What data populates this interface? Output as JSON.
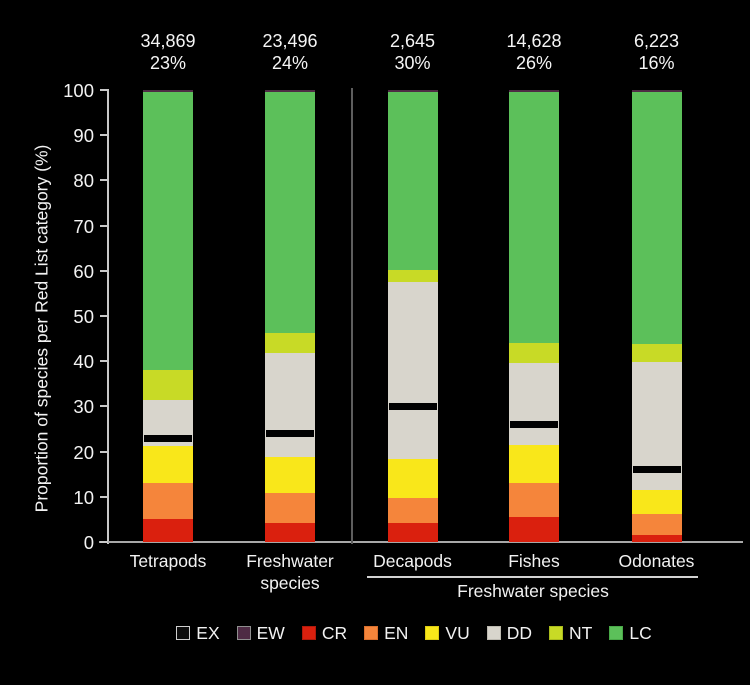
{
  "y_axis_title": "Proportion of species per Red List category (%)",
  "legend": {
    "items": [
      {
        "code": "EX",
        "label": "EX",
        "color": "#0d0d0d",
        "border": "#cfcfcf"
      },
      {
        "code": "EW",
        "label": "EW",
        "color": "#4e2b44",
        "border": "#8f8f8f"
      },
      {
        "code": "CR",
        "label": "CR",
        "color": "#da200e",
        "border": "#b01a0b"
      },
      {
        "code": "EN",
        "label": "EN",
        "color": "#f5853b",
        "border": "#d96f2d"
      },
      {
        "code": "VU",
        "label": "VU",
        "color": "#f9e71a",
        "border": "#ddcc12"
      },
      {
        "code": "DD",
        "label": "DD",
        "color": "#d8d5cc",
        "border": "#bcb9b0"
      },
      {
        "code": "NT",
        "label": "NT",
        "color": "#c8da26",
        "border": "#aabc1c"
      },
      {
        "code": "LC",
        "label": "LC",
        "color": "#5cc05a",
        "border": "#49a948"
      }
    ]
  },
  "chart_data": {
    "type": "bar",
    "stacked": true,
    "title": "",
    "xlabel": "",
    "ylabel": "Proportion of species per Red List category (%)",
    "ylim": [
      0,
      100
    ],
    "yticks": [
      0,
      10,
      20,
      30,
      40,
      50,
      60,
      70,
      80,
      90,
      100
    ],
    "categories": [
      "Tetrapods",
      "Freshwater species",
      "Decapods",
      "Fishes",
      "Odonates"
    ],
    "group_label": "Freshwater species",
    "grouped_categories": [
      "Decapods",
      "Fishes",
      "Odonates"
    ],
    "annotations": [
      {
        "species_count": "34,869",
        "percent_threatened": "23%"
      },
      {
        "species_count": "23,496",
        "percent_threatened": "24%"
      },
      {
        "species_count": "2,645",
        "percent_threatened": "30%"
      },
      {
        "species_count": "14,628",
        "percent_threatened": "26%"
      },
      {
        "species_count": "6,223",
        "percent_threatened": "16%"
      }
    ],
    "threatened_marker_values": [
      23,
      24,
      30,
      26,
      16
    ],
    "series": [
      {
        "name": "CR",
        "values": [
          5.1,
          4.2,
          4.2,
          5.5,
          1.5
        ]
      },
      {
        "name": "EN",
        "values": [
          8.0,
          6.6,
          5.5,
          7.5,
          4.6
        ]
      },
      {
        "name": "VU",
        "values": [
          8.2,
          8.0,
          8.6,
          8.4,
          5.3
        ]
      },
      {
        "name": "DD",
        "values": [
          10.2,
          23.0,
          39.2,
          18.1,
          28.5
        ]
      },
      {
        "name": "NT",
        "values": [
          6.6,
          4.4,
          2.7,
          4.6,
          4.0
        ]
      },
      {
        "name": "LC",
        "values": [
          61.5,
          53.4,
          39.4,
          55.5,
          55.7
        ]
      },
      {
        "name": "EW",
        "values": [
          0.3,
          0.3,
          0.3,
          0.3,
          0.3
        ]
      },
      {
        "name": "EX",
        "values": [
          0.1,
          0.1,
          0.1,
          0.1,
          0.1
        ]
      }
    ]
  }
}
